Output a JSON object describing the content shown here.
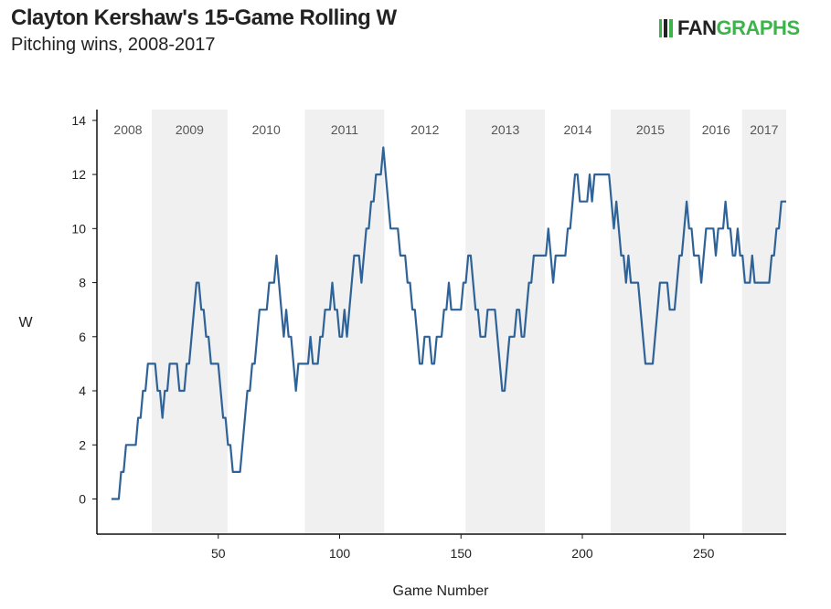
{
  "header": {
    "title": "Clayton Kershaw's 15-Game Rolling W",
    "subtitle": "Pitching wins, 2008-2017",
    "logo": "FANGRAPHS"
  },
  "chart_data": {
    "type": "line",
    "title": "Clayton Kershaw's 15-Game Rolling W",
    "subtitle": "Pitching wins, 2008-2017",
    "xlabel": "Game Number",
    "ylabel": "W",
    "xlim": [
      0,
      284
    ],
    "ylim": [
      -1.3,
      14.4
    ],
    "xticks": [
      50,
      100,
      150,
      200,
      250
    ],
    "yticks": [
      0,
      2,
      4,
      6,
      8,
      10,
      12,
      14
    ],
    "grid": false,
    "line_color": "#2f6398",
    "band_color": "#f0f0f0",
    "seasons": [
      {
        "label": "2008",
        "start": 0,
        "end": 22.6,
        "shaded": false
      },
      {
        "label": "2009",
        "start": 22.6,
        "end": 53.8,
        "shaded": true
      },
      {
        "label": "2010",
        "start": 53.8,
        "end": 85.7,
        "shaded": false
      },
      {
        "label": "2011",
        "start": 85.7,
        "end": 118.4,
        "shaded": true
      },
      {
        "label": "2012",
        "start": 118.4,
        "end": 151.9,
        "shaded": false
      },
      {
        "label": "2013",
        "start": 151.9,
        "end": 184.6,
        "shaded": true
      },
      {
        "label": "2014",
        "start": 184.6,
        "end": 211.7,
        "shaded": false
      },
      {
        "label": "2015",
        "start": 211.7,
        "end": 244.4,
        "shaded": true
      },
      {
        "label": "2016",
        "start": 244.4,
        "end": 265.8,
        "shaded": false
      },
      {
        "label": "2017",
        "start": 265.8,
        "end": 284,
        "shaded": true
      }
    ],
    "points": [
      [
        6,
        0
      ],
      [
        9,
        0
      ],
      [
        10,
        1
      ],
      [
        11,
        1
      ],
      [
        12,
        2
      ],
      [
        16,
        2
      ],
      [
        17,
        3
      ],
      [
        18,
        3
      ],
      [
        19,
        4
      ],
      [
        20,
        4
      ],
      [
        21,
        5
      ],
      [
        24,
        5
      ],
      [
        25,
        4
      ],
      [
        26,
        4
      ],
      [
        27,
        3
      ],
      [
        28,
        4
      ],
      [
        29,
        4
      ],
      [
        30,
        5
      ],
      [
        33,
        5
      ],
      [
        34,
        4
      ],
      [
        36,
        4
      ],
      [
        37,
        5
      ],
      [
        38,
        5
      ],
      [
        41,
        8
      ],
      [
        42,
        8
      ],
      [
        43,
        7
      ],
      [
        44,
        7
      ],
      [
        45,
        6
      ],
      [
        46,
        6
      ],
      [
        47,
        5
      ],
      [
        50,
        5
      ],
      [
        52,
        3
      ],
      [
        53,
        3
      ],
      [
        54,
        2
      ],
      [
        55,
        2
      ],
      [
        56,
        1
      ],
      [
        59,
        1
      ],
      [
        62,
        4
      ],
      [
        63,
        4
      ],
      [
        64,
        5
      ],
      [
        65,
        5
      ],
      [
        67,
        7
      ],
      [
        70,
        7
      ],
      [
        71,
        8
      ],
      [
        73,
        8
      ],
      [
        74,
        9
      ],
      [
        77,
        6
      ],
      [
        78,
        7
      ],
      [
        79,
        6
      ],
      [
        80,
        6
      ],
      [
        82,
        4
      ],
      [
        83,
        5
      ],
      [
        87,
        5
      ],
      [
        88,
        6
      ],
      [
        89,
        5
      ],
      [
        91,
        5
      ],
      [
        92,
        6
      ],
      [
        93,
        6
      ],
      [
        94,
        7
      ],
      [
        96,
        7
      ],
      [
        97,
        8
      ],
      [
        98,
        7
      ],
      [
        99,
        7
      ],
      [
        100,
        6
      ],
      [
        101,
        6
      ],
      [
        102,
        7
      ],
      [
        103,
        6
      ],
      [
        106,
        9
      ],
      [
        108,
        9
      ],
      [
        109,
        8
      ],
      [
        111,
        10
      ],
      [
        112,
        10
      ],
      [
        113,
        11
      ],
      [
        114,
        11
      ],
      [
        115,
        12
      ],
      [
        117,
        12
      ],
      [
        118,
        13
      ],
      [
        121,
        10
      ],
      [
        124,
        10
      ],
      [
        125,
        9
      ],
      [
        127,
        9
      ],
      [
        128,
        8
      ],
      [
        129,
        8
      ],
      [
        130,
        7
      ],
      [
        131,
        7
      ],
      [
        132,
        6
      ],
      [
        133,
        5
      ],
      [
        134,
        5
      ],
      [
        135,
        6
      ],
      [
        137,
        6
      ],
      [
        138,
        5
      ],
      [
        139,
        5
      ],
      [
        140,
        6
      ],
      [
        142,
        6
      ],
      [
        143,
        7
      ],
      [
        144,
        7
      ],
      [
        145,
        8
      ],
      [
        146,
        7
      ],
      [
        150,
        7
      ],
      [
        151,
        8
      ],
      [
        152,
        8
      ],
      [
        153,
        9
      ],
      [
        154,
        9
      ],
      [
        156,
        7
      ],
      [
        157,
        7
      ],
      [
        158,
        6
      ],
      [
        160,
        6
      ],
      [
        161,
        7
      ],
      [
        164,
        7
      ],
      [
        167,
        4
      ],
      [
        168,
        4
      ],
      [
        170,
        6
      ],
      [
        172,
        6
      ],
      [
        173,
        7
      ],
      [
        174,
        7
      ],
      [
        175,
        6
      ],
      [
        176,
        6
      ],
      [
        178,
        8
      ],
      [
        179,
        8
      ],
      [
        180,
        9
      ],
      [
        185,
        9
      ],
      [
        186,
        10
      ],
      [
        188,
        8
      ],
      [
        189,
        9
      ],
      [
        193,
        9
      ],
      [
        194,
        10
      ],
      [
        195,
        10
      ],
      [
        197,
        12
      ],
      [
        198,
        12
      ],
      [
        199,
        11
      ],
      [
        202,
        11
      ],
      [
        203,
        12
      ],
      [
        204,
        11
      ],
      [
        205,
        12
      ],
      [
        211,
        12
      ],
      [
        213,
        10
      ],
      [
        214,
        11
      ],
      [
        216,
        9
      ],
      [
        217,
        9
      ],
      [
        218,
        8
      ],
      [
        219,
        9
      ],
      [
        220,
        8
      ],
      [
        223,
        8
      ],
      [
        226,
        5
      ],
      [
        229,
        5
      ],
      [
        232,
        8
      ],
      [
        235,
        8
      ],
      [
        236,
        7
      ],
      [
        238,
        7
      ],
      [
        240,
        9
      ],
      [
        241,
        9
      ],
      [
        243,
        11
      ],
      [
        244,
        10
      ],
      [
        245,
        10
      ],
      [
        246,
        9
      ],
      [
        248,
        9
      ],
      [
        249,
        8
      ],
      [
        251,
        10
      ],
      [
        254,
        10
      ],
      [
        255,
        9
      ],
      [
        256,
        10
      ],
      [
        258,
        10
      ],
      [
        259,
        11
      ],
      [
        260,
        10
      ],
      [
        261,
        10
      ],
      [
        262,
        9
      ],
      [
        263,
        9
      ],
      [
        264,
        10
      ],
      [
        265,
        9
      ],
      [
        266,
        9
      ],
      [
        267,
        8
      ],
      [
        269,
        8
      ],
      [
        270,
        9
      ],
      [
        271,
        8
      ],
      [
        277,
        8
      ],
      [
        278,
        9
      ],
      [
        279,
        9
      ],
      [
        280,
        10
      ],
      [
        281,
        10
      ],
      [
        282,
        11
      ],
      [
        284,
        11
      ]
    ]
  }
}
